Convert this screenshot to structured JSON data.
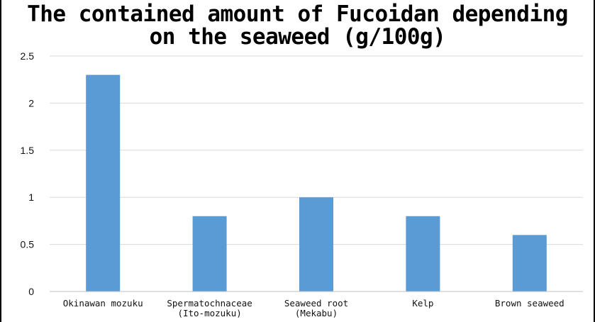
{
  "chart_data": {
    "type": "bar",
    "title": "The contained amount of Fucoidan depending\non the seaweed (g/100g)",
    "categories": [
      [
        "Okinawan mozuku"
      ],
      [
        "Spermatochnaceae",
        "(Ito-mozuku)"
      ],
      [
        "Seaweed root",
        "(Mekabu)"
      ],
      [
        "Kelp"
      ],
      [
        "Brown seaweed"
      ]
    ],
    "values": [
      2.3,
      0.8,
      1.0,
      0.8,
      0.6
    ],
    "y_ticks": [
      "0",
      "0.5",
      "1",
      "1.5",
      "2",
      "2.5"
    ],
    "ylim": [
      0,
      2.5
    ],
    "grid": true,
    "bar_color": "#5b9bd5",
    "grid_color": "#d9d9d9"
  }
}
